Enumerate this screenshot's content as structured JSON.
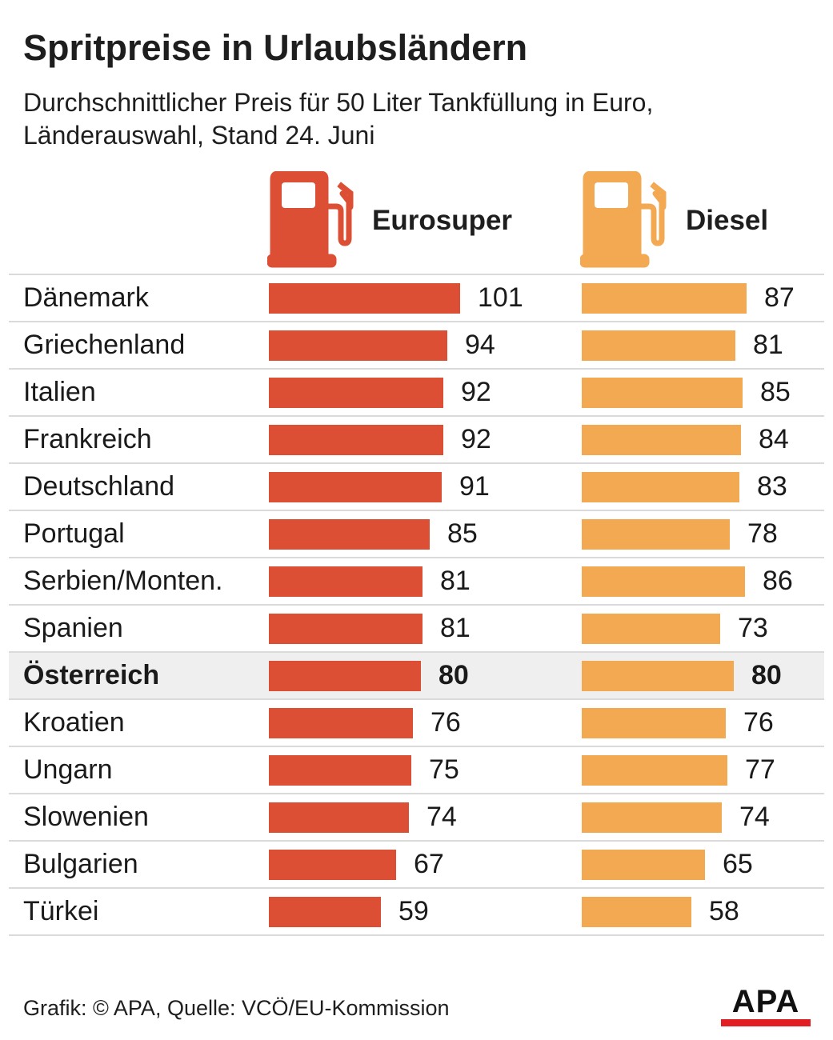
{
  "title": "Spritpreise in Urlaubsländern",
  "subtitle": "Durchschnittlicher Preis für 50 Liter Tankfüllung in Euro, Länderauswahl, Stand 24. Juni",
  "footer": "Grafik: © APA, Quelle: VCÖ/EU-Kommission",
  "logo": "APA",
  "colors": {
    "eurosuper": "#dc4f35",
    "diesel": "#f3a852",
    "logo_red": "#e11e24"
  },
  "icons": {
    "eurosuper": "fuel-pump-icon",
    "diesel": "fuel-pump-icon"
  },
  "chart_data": {
    "type": "bar",
    "orientation": "horizontal",
    "title": "Spritpreise in Urlaubsländern",
    "subtitle": "Durchschnittlicher Preis für 50 Liter Tankfüllung in Euro, Länderauswahl, Stand 24. Juni",
    "xlabel": "",
    "ylabel": "",
    "highlight": "Österreich",
    "categories": [
      "Dänemark",
      "Griechenland",
      "Italien",
      "Frankreich",
      "Deutschland",
      "Portugal",
      "Serbien/Monten.",
      "Spanien",
      "Österreich",
      "Kroatien",
      "Ungarn",
      "Slowenien",
      "Bulgarien",
      "Türkei"
    ],
    "series": [
      {
        "name": "Eurosuper",
        "color": "#dc4f35",
        "values": [
          101,
          94,
          92,
          92,
          91,
          85,
          81,
          81,
          80,
          76,
          75,
          74,
          67,
          59
        ]
      },
      {
        "name": "Diesel",
        "color": "#f3a852",
        "values": [
          87,
          81,
          85,
          84,
          83,
          78,
          86,
          73,
          80,
          76,
          77,
          74,
          65,
          58
        ]
      }
    ]
  }
}
